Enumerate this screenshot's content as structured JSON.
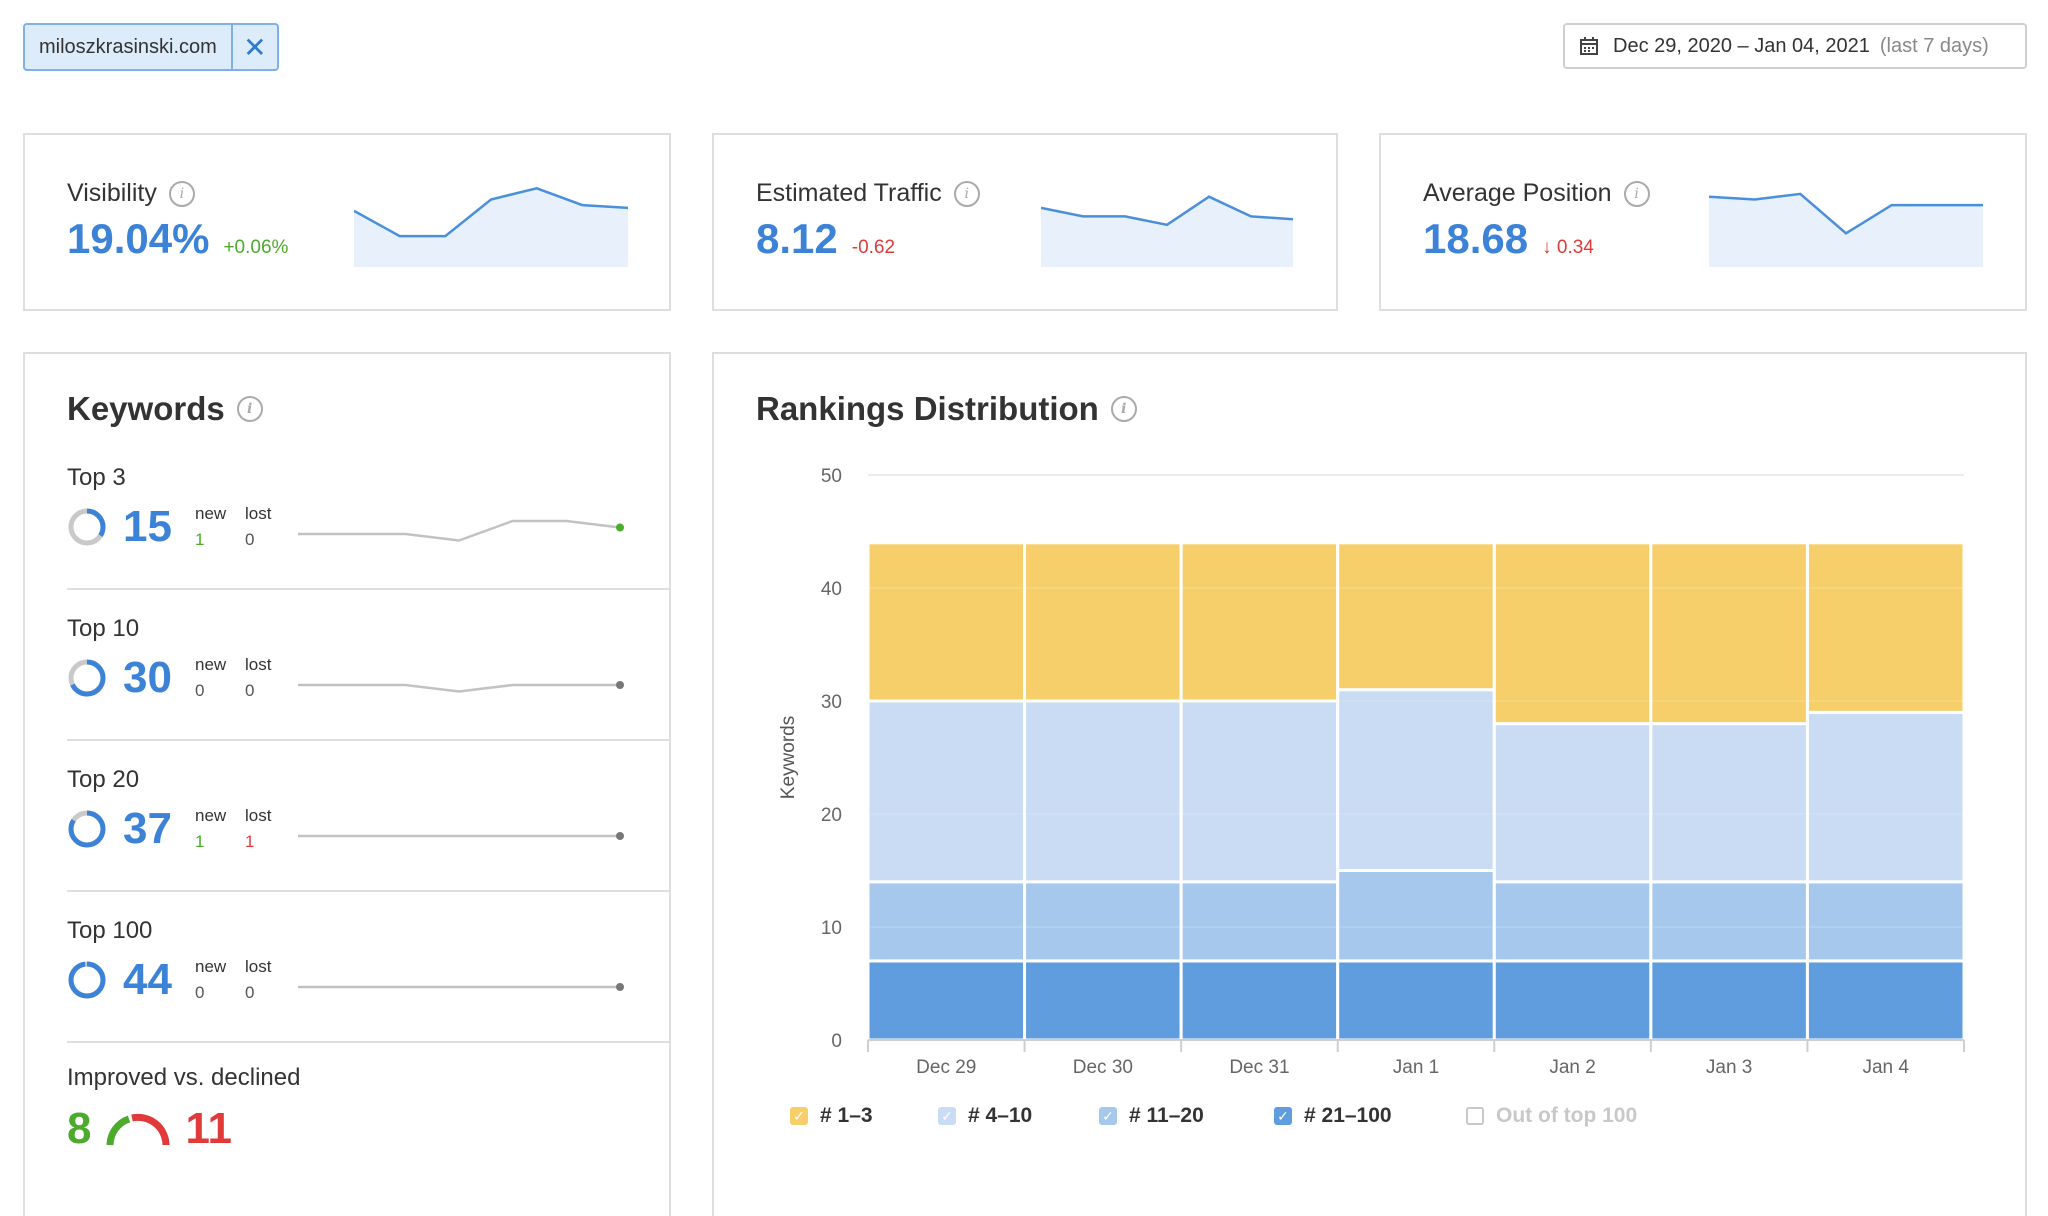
{
  "domain_filter": {
    "value": "miloszkrasinski.com",
    "remove_icon": "close-icon"
  },
  "date_range": {
    "range": "Dec 29, 2020 – Jan 04, 2021",
    "period": "(last 7 days)",
    "icon": "calendar-icon"
  },
  "metrics": [
    {
      "title": "Visibility",
      "value": "19.04%",
      "delta": "+0.06%",
      "delta_color": "#4caa2c",
      "trend": [
        40,
        31,
        31,
        44,
        48,
        42,
        41
      ]
    },
    {
      "title": "Estimated Traffic",
      "value": "8.12",
      "delta": "-0.62",
      "delta_color": "#e03a3a",
      "trend": [
        41,
        38,
        38,
        35,
        45,
        38,
        37
      ]
    },
    {
      "title": "Average Position",
      "value": "18.68",
      "delta": "↓ 0.34",
      "delta_color": "#e03a3a",
      "trend": [
        45,
        44,
        46,
        32,
        42,
        42,
        42
      ]
    }
  ],
  "keywords": {
    "title": "Keywords",
    "new_label": "new",
    "lost_label": "lost",
    "groups": [
      {
        "label": "Top 3",
        "count": "15",
        "new": "1",
        "lost": "0",
        "new_color": "#4caa2c",
        "lost_color": "#555",
        "share": 0.34,
        "end_dot": "#4caa2c",
        "trend": [
          14,
          14,
          14,
          13,
          16,
          16,
          15
        ]
      },
      {
        "label": "Top 10",
        "count": "30",
        "new": "0",
        "lost": "0",
        "new_color": "#555",
        "lost_color": "#555",
        "share": 0.68,
        "end_dot": "#777",
        "trend": [
          30,
          30,
          30,
          29,
          30,
          30,
          30
        ]
      },
      {
        "label": "Top 20",
        "count": "37",
        "new": "1",
        "lost": "1",
        "new_color": "#4caa2c",
        "lost_color": "#e03a3a",
        "share": 0.84,
        "end_dot": "#777",
        "trend": [
          37,
          37,
          37,
          37,
          37,
          37,
          37
        ]
      },
      {
        "label": "Top 100",
        "count": "44",
        "new": "0",
        "lost": "0",
        "new_color": "#555",
        "lost_color": "#555",
        "share": 0.98,
        "end_dot": "#777",
        "trend": [
          44,
          44,
          44,
          44,
          44,
          44,
          44
        ]
      }
    ],
    "improved_label": "Improved vs. declined",
    "improved": "8",
    "declined": "11"
  },
  "rankings": {
    "title": "Rankings Distribution",
    "legend": [
      {
        "label": "# 1–3",
        "color": "#f6cf6b",
        "checked": true
      },
      {
        "label": "# 4–10",
        "color": "#c9dcf3",
        "checked": true
      },
      {
        "label": "# 11–20",
        "color": "#a6c8ec",
        "checked": true
      },
      {
        "label": "# 21–100",
        "color": "#5f9ddf",
        "checked": true
      },
      {
        "label": "Out of top 100",
        "color": "#c8c8c8",
        "checked": false
      }
    ]
  },
  "chart_data": {
    "type": "bar",
    "stacked": true,
    "title": "Rankings Distribution",
    "ylabel": "Keywords",
    "xlabel": "",
    "ylim": [
      0,
      50
    ],
    "yticks": [
      0,
      10,
      20,
      30,
      40,
      50
    ],
    "categories": [
      "Dec 29",
      "Dec 30",
      "Dec 31",
      "Jan 1",
      "Jan 2",
      "Jan 3",
      "Jan 4"
    ],
    "series": [
      {
        "name": "# 21–100",
        "color": "#5f9ddf",
        "values": [
          7,
          7,
          7,
          7,
          7,
          7,
          7
        ]
      },
      {
        "name": "# 11–20",
        "color": "#a6c8ec",
        "values": [
          7,
          7,
          7,
          8,
          7,
          7,
          7
        ]
      },
      {
        "name": "# 4–10",
        "color": "#c9dcf3",
        "values": [
          16,
          16,
          16,
          16,
          14,
          14,
          15
        ]
      },
      {
        "name": "# 1–3",
        "color": "#f6cf6b",
        "values": [
          14,
          14,
          14,
          13,
          16,
          16,
          15
        ]
      }
    ],
    "grid": true
  }
}
